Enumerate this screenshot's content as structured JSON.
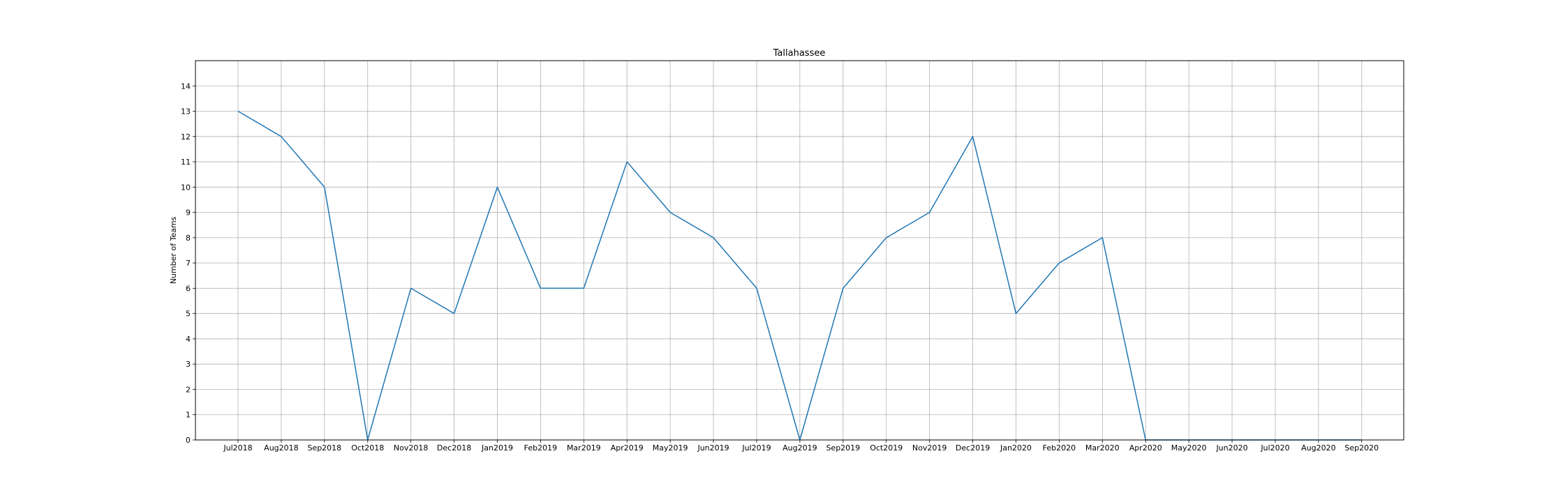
{
  "chart_data": {
    "type": "line",
    "title": "Tallahassee",
    "xlabel": "",
    "ylabel": "Number of Teams",
    "categories": [
      "Jul2018",
      "Aug2018",
      "Sep2018",
      "Oct2018",
      "Nov2018",
      "Dec2018",
      "Jan2019",
      "Feb2019",
      "Mar2019",
      "Apr2019",
      "May2019",
      "Jun2019",
      "Jul2019",
      "Aug2019",
      "Sep2019",
      "Oct2019",
      "Nov2019",
      "Dec2019",
      "Jan2020",
      "Feb2020",
      "Mar2020",
      "Apr2020",
      "May2020",
      "Jun2020",
      "Jul2020",
      "Aug2020",
      "Sep2020"
    ],
    "series": [
      {
        "values": [
          13,
          12,
          10,
          0,
          6,
          5,
          10,
          6,
          6,
          11,
          9,
          8,
          6,
          0,
          6,
          8,
          9,
          12,
          5,
          7,
          8,
          0,
          0,
          0,
          0,
          0,
          0
        ]
      }
    ],
    "ylim": [
      0,
      15
    ],
    "yticks": [
      0,
      1,
      2,
      3,
      4,
      5,
      6,
      7,
      8,
      9,
      10,
      11,
      12,
      13,
      14
    ],
    "grid": true,
    "legend": "none",
    "colors": {
      "line": "#1f77b4",
      "grid": "#b0b0b0",
      "axes": "#000000"
    }
  }
}
